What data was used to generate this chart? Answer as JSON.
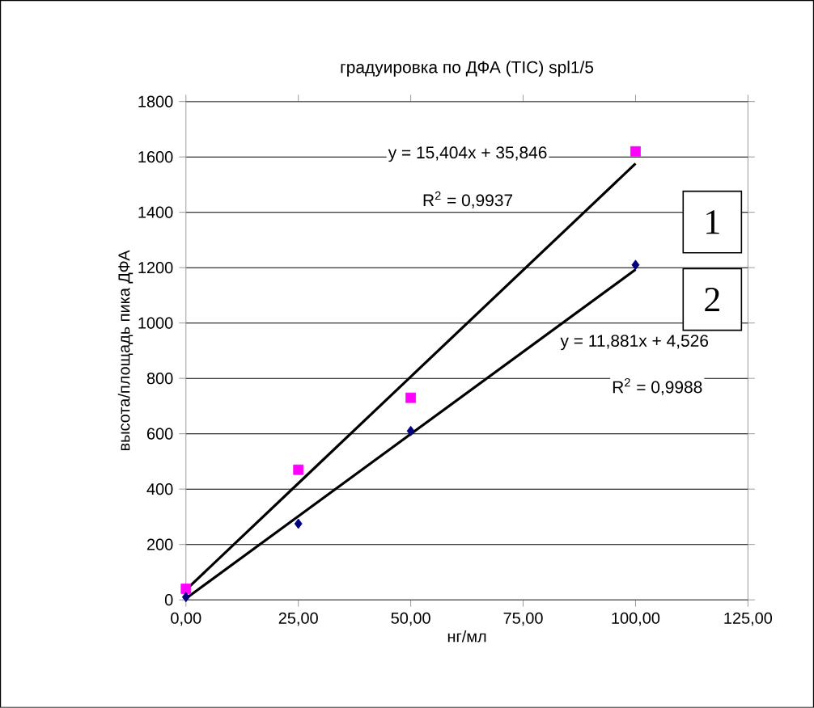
{
  "chart_data": {
    "type": "scatter",
    "title": "градуировка по ДФА (TIC) spl1/5",
    "xlabel": "нг/мл",
    "ylabel": "высота/площадь пика ДФА",
    "x": [
      0,
      25,
      50,
      100
    ],
    "series": [
      {
        "color": "#ff00ff",
        "marker": "square",
        "values": [
          40,
          470,
          730,
          1620
        ]
      },
      {
        "color": "#000080",
        "marker": "diamond",
        "values": [
          10,
          275,
          610,
          1210
        ]
      },
      {
        "type": "line",
        "color": "#000000",
        "values": [
          36,
          421,
          806,
          1576
        ]
      },
      {
        "type": "line",
        "color": "#000000",
        "values": [
          5,
          302,
          599,
          1193
        ]
      }
    ],
    "xlim": [
      0,
      125
    ],
    "xticks": [
      {
        "value": 0,
        "label": "0,00"
      },
      {
        "value": 25,
        "label": "25,00"
      },
      {
        "value": 50,
        "label": "50,00"
      },
      {
        "value": 75,
        "label": "75,00"
      },
      {
        "value": 100,
        "label": "100,00"
      },
      {
        "value": 125,
        "label": "125,00"
      }
    ],
    "ylim": [
      0,
      1800
    ],
    "yticks": [
      0,
      200,
      400,
      600,
      800,
      1000,
      1200,
      1400,
      1600,
      1800
    ],
    "grid": "y",
    "annotations": [
      "y = 15,404x + 35,846",
      "R$^{2}$ = 0,9937",
      "y = 11,881x + 4,526",
      "R$^{2}$ = 0,9988",
      "1",
      "2"
    ]
  }
}
